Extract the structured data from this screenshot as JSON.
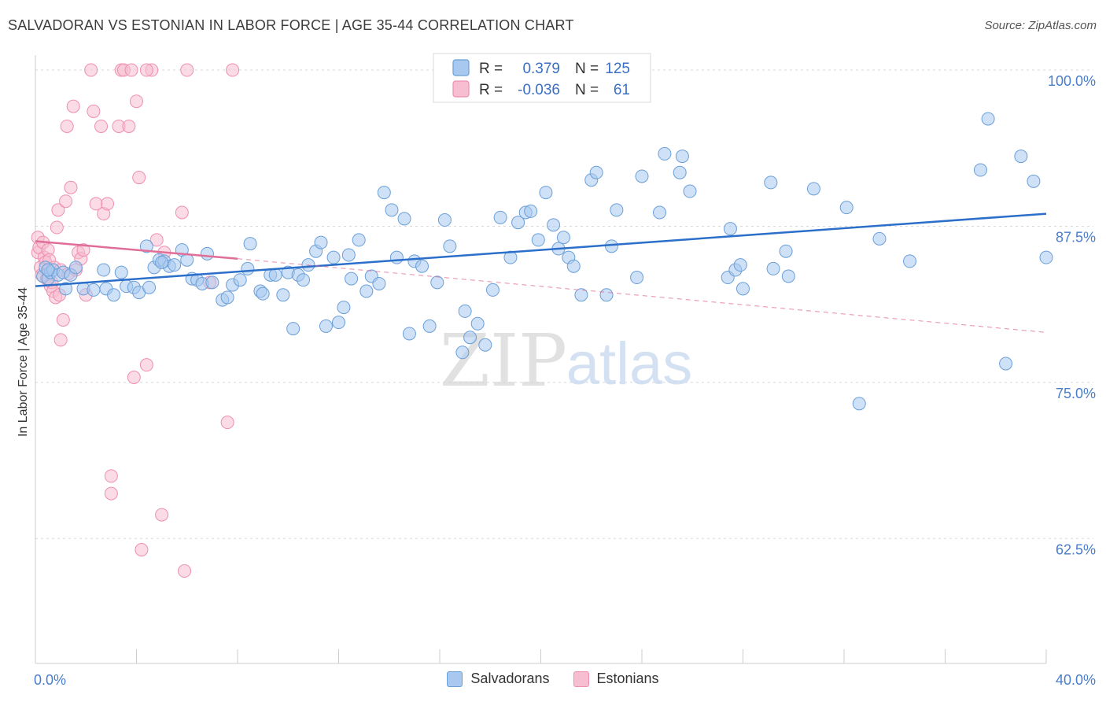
{
  "title": "SALVADORAN VS ESTONIAN IN LABOR FORCE | AGE 35-44 CORRELATION CHART",
  "source": "Source: ZipAtlas.com",
  "watermark": {
    "zip": "ZIP",
    "atlas": "atlas"
  },
  "colors": {
    "blue_fill": "#a8c8ef",
    "blue_stroke": "#6a9fd8",
    "blue_line": "#2c6fca",
    "pink_fill": "#f7bdd0",
    "pink_stroke": "#ee8fb0",
    "pink_line": "#e06e98",
    "axis_text": "#4a7dcc",
    "grid": "#d8d8d8"
  },
  "legend": {
    "rows": [
      {
        "r_label": "R =",
        "r_value": "0.379",
        "n_label": "N =",
        "n_value": "125"
      },
      {
        "r_label": "R =",
        "r_value": "-0.036",
        "n_label": "N =",
        "n_value": "61"
      }
    ]
  },
  "bottom_legend": {
    "salvadorans": "Salvadorans",
    "estonians": "Estonians"
  },
  "chart_data": {
    "type": "scatter",
    "title": "SALVADORAN VS ESTONIAN IN LABOR FORCE | AGE 35-44 CORRELATION CHART",
    "ylabel": "In Labor Force | Age 35-44",
    "xlim": [
      0,
      40
    ],
    "ylim": [
      52.5,
      101.2
    ],
    "x_tick_labels": [
      "0.0%",
      "40.0%"
    ],
    "y_ticks": [
      62.5,
      75.0,
      87.5,
      100.0
    ],
    "y_tick_labels": [
      "62.5%",
      "75.0%",
      "87.5%",
      "100.0%"
    ],
    "grid": "horizontal dashed",
    "legend_position": "top-center",
    "series": [
      {
        "name": "Salvadorans",
        "r": 0.379,
        "n": 125,
        "trend": {
          "x": [
            0,
            40
          ],
          "y": [
            82.7,
            88.5
          ]
        },
        "points": [
          [
            0.3,
            83.5
          ],
          [
            0.4,
            84.2
          ],
          [
            0.5,
            83.3
          ],
          [
            0.6,
            83.8
          ],
          [
            0.7,
            84.0
          ],
          [
            0.9,
            83.6
          ],
          [
            1.1,
            83.8
          ],
          [
            1.2,
            82.5
          ],
          [
            1.4,
            83.6
          ],
          [
            1.6,
            84.2
          ],
          [
            1.9,
            82.5
          ],
          [
            2.3,
            82.4
          ],
          [
            2.7,
            84.0
          ],
          [
            2.8,
            82.5
          ],
          [
            3.1,
            82.0
          ],
          [
            3.4,
            83.8
          ],
          [
            3.6,
            82.7
          ],
          [
            3.9,
            82.6
          ],
          [
            4.1,
            82.2
          ],
          [
            4.4,
            85.9
          ],
          [
            4.5,
            82.6
          ],
          [
            4.7,
            84.2
          ],
          [
            4.9,
            84.8
          ],
          [
            5.1,
            84.7
          ],
          [
            5.3,
            84.3
          ],
          [
            5.5,
            84.4
          ],
          [
            5.8,
            85.6
          ],
          [
            6.0,
            84.8
          ],
          [
            6.2,
            83.3
          ],
          [
            6.4,
            83.2
          ],
          [
            6.6,
            82.9
          ],
          [
            6.8,
            85.3
          ],
          [
            7.0,
            83.0
          ],
          [
            7.4,
            81.6
          ],
          [
            7.6,
            81.8
          ],
          [
            7.8,
            82.8
          ],
          [
            8.1,
            83.2
          ],
          [
            8.4,
            84.1
          ],
          [
            8.5,
            86.1
          ],
          [
            8.9,
            82.3
          ],
          [
            9.0,
            82.1
          ],
          [
            9.3,
            83.6
          ],
          [
            9.5,
            83.6
          ],
          [
            9.8,
            82.0
          ],
          [
            10.0,
            83.8
          ],
          [
            10.2,
            79.3
          ],
          [
            10.4,
            83.6
          ],
          [
            10.6,
            83.2
          ],
          [
            10.8,
            84.4
          ],
          [
            11.1,
            85.5
          ],
          [
            11.3,
            86.2
          ],
          [
            11.5,
            79.5
          ],
          [
            11.8,
            85.0
          ],
          [
            12.0,
            79.8
          ],
          [
            12.2,
            81.0
          ],
          [
            12.4,
            85.2
          ],
          [
            12.5,
            83.3
          ],
          [
            12.8,
            86.4
          ],
          [
            13.1,
            82.3
          ],
          [
            13.3,
            83.5
          ],
          [
            13.6,
            82.9
          ],
          [
            13.8,
            90.2
          ],
          [
            14.1,
            88.8
          ],
          [
            14.3,
            85.0
          ],
          [
            14.6,
            88.1
          ],
          [
            14.8,
            78.9
          ],
          [
            15.0,
            84.7
          ],
          [
            15.3,
            84.3
          ],
          [
            15.6,
            79.5
          ],
          [
            15.9,
            83.0
          ],
          [
            16.2,
            88.0
          ],
          [
            16.4,
            85.9
          ],
          [
            16.9,
            77.4
          ],
          [
            17.0,
            80.7
          ],
          [
            17.2,
            78.6
          ],
          [
            17.5,
            79.7
          ],
          [
            17.8,
            78.0
          ],
          [
            18.1,
            82.4
          ],
          [
            18.4,
            88.2
          ],
          [
            18.8,
            85.0
          ],
          [
            19.1,
            87.8
          ],
          [
            19.4,
            88.6
          ],
          [
            19.6,
            88.7
          ],
          [
            19.9,
            86.4
          ],
          [
            20.2,
            90.2
          ],
          [
            20.5,
            87.6
          ],
          [
            20.7,
            85.7
          ],
          [
            20.9,
            86.6
          ],
          [
            21.1,
            85.0
          ],
          [
            21.3,
            84.3
          ],
          [
            21.6,
            82.0
          ],
          [
            22.0,
            91.2
          ],
          [
            22.2,
            91.8
          ],
          [
            22.6,
            82.0
          ],
          [
            22.8,
            85.9
          ],
          [
            23.0,
            88.8
          ],
          [
            23.8,
            83.4
          ],
          [
            24.0,
            91.5
          ],
          [
            24.7,
            88.6
          ],
          [
            24.9,
            93.3
          ],
          [
            25.5,
            91.8
          ],
          [
            25.6,
            93.1
          ],
          [
            25.9,
            90.3
          ],
          [
            27.4,
            83.4
          ],
          [
            27.5,
            87.3
          ],
          [
            27.7,
            84.0
          ],
          [
            27.9,
            84.4
          ],
          [
            28.0,
            82.5
          ],
          [
            29.1,
            91.0
          ],
          [
            29.2,
            84.1
          ],
          [
            29.7,
            85.5
          ],
          [
            29.8,
            83.5
          ],
          [
            30.8,
            90.5
          ],
          [
            32.1,
            89.0
          ],
          [
            32.6,
            73.3
          ],
          [
            33.4,
            86.5
          ],
          [
            34.6,
            84.7
          ],
          [
            37.4,
            92.0
          ],
          [
            37.7,
            96.1
          ],
          [
            38.4,
            76.5
          ],
          [
            39.0,
            93.1
          ],
          [
            39.5,
            91.1
          ],
          [
            40.0,
            85.0
          ],
          [
            0.5,
            84.0
          ],
          [
            5.0,
            84.6
          ]
        ]
      },
      {
        "name": "Estonians",
        "r": -0.036,
        "n": 61,
        "trend_solid": {
          "x": [
            0,
            8
          ],
          "y": [
            86.3,
            84.9
          ]
        },
        "trend_dashed": {
          "x": [
            8,
            40
          ],
          "y": [
            84.9,
            79.0
          ]
        },
        "points": [
          [
            0.1,
            86.6
          ],
          [
            0.1,
            85.4
          ],
          [
            0.15,
            85.8
          ],
          [
            0.2,
            84.2
          ],
          [
            0.25,
            83.6
          ],
          [
            0.3,
            86.2
          ],
          [
            0.35,
            85.0
          ],
          [
            0.4,
            84.6
          ],
          [
            0.45,
            83.3
          ],
          [
            0.5,
            85.6
          ],
          [
            0.55,
            84.8
          ],
          [
            0.6,
            82.7
          ],
          [
            0.65,
            83.0
          ],
          [
            0.7,
            82.3
          ],
          [
            0.75,
            84.2
          ],
          [
            0.8,
            81.8
          ],
          [
            0.85,
            87.4
          ],
          [
            0.9,
            88.8
          ],
          [
            0.95,
            82.0
          ],
          [
            1.0,
            78.4
          ],
          [
            1.0,
            84.0
          ],
          [
            1.1,
            80.0
          ],
          [
            1.2,
            89.5
          ],
          [
            1.25,
            95.5
          ],
          [
            1.3,
            83.7
          ],
          [
            1.4,
            90.6
          ],
          [
            1.5,
            97.1
          ],
          [
            1.6,
            84.0
          ],
          [
            1.7,
            85.4
          ],
          [
            1.8,
            84.9
          ],
          [
            1.9,
            85.6
          ],
          [
            2.0,
            82.0
          ],
          [
            2.2,
            100.0
          ],
          [
            2.3,
            96.7
          ],
          [
            2.4,
            89.3
          ],
          [
            2.6,
            95.5
          ],
          [
            2.7,
            88.5
          ],
          [
            2.85,
            89.3
          ],
          [
            3.0,
            67.5
          ],
          [
            3.0,
            66.1
          ],
          [
            3.3,
            95.5
          ],
          [
            3.4,
            100.0
          ],
          [
            3.5,
            100.0
          ],
          [
            3.7,
            95.5
          ],
          [
            3.8,
            100.0
          ],
          [
            3.9,
            75.4
          ],
          [
            4.0,
            97.5
          ],
          [
            4.1,
            91.4
          ],
          [
            4.2,
            61.6
          ],
          [
            4.4,
            76.4
          ],
          [
            4.6,
            100.0
          ],
          [
            4.8,
            86.4
          ],
          [
            5.0,
            64.4
          ],
          [
            5.1,
            85.4
          ],
          [
            5.8,
            88.6
          ],
          [
            5.9,
            59.9
          ],
          [
            6.0,
            100.0
          ],
          [
            6.9,
            83.0
          ],
          [
            7.6,
            71.8
          ],
          [
            7.8,
            100.0
          ],
          [
            4.4,
            100.0
          ]
        ]
      }
    ]
  }
}
